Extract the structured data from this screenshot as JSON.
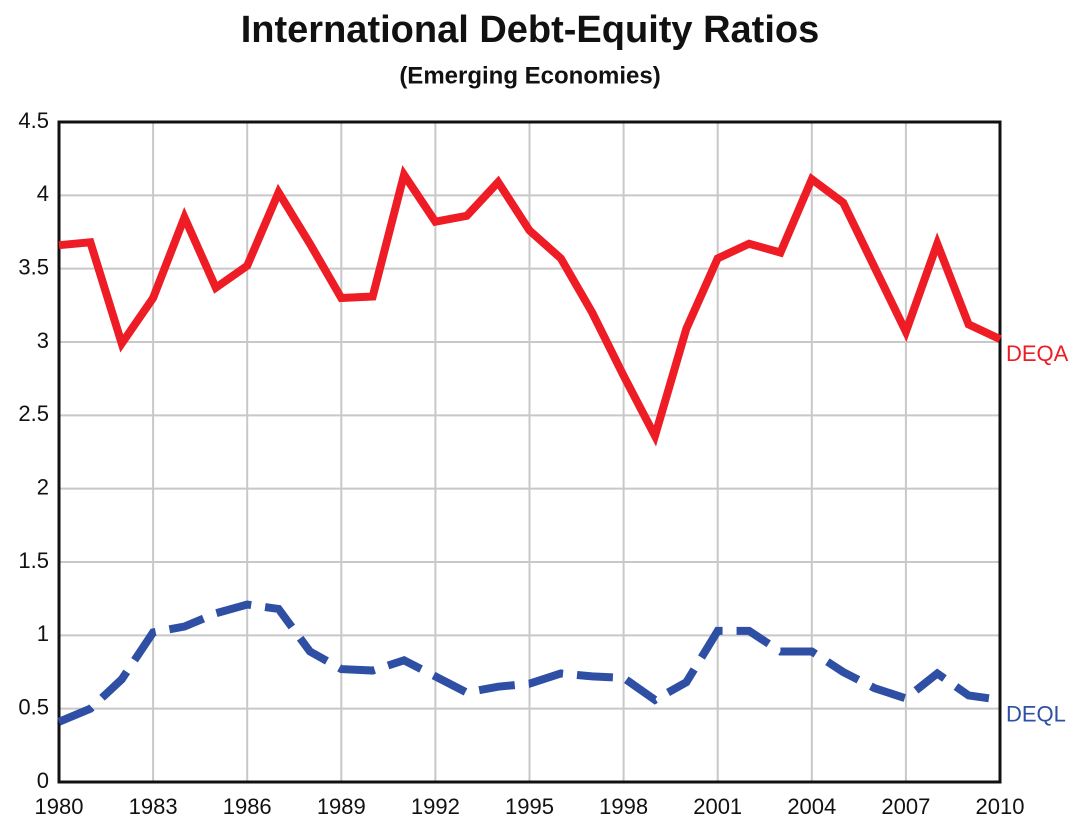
{
  "chart_data": {
    "type": "line",
    "title": "International Debt-Equity Ratios",
    "subtitle": "(Emerging Economies)",
    "x": [
      1980,
      1981,
      1982,
      1983,
      1984,
      1985,
      1986,
      1987,
      1988,
      1989,
      1990,
      1991,
      1992,
      1993,
      1994,
      1995,
      1996,
      1997,
      1998,
      1999,
      2000,
      2001,
      2002,
      2003,
      2004,
      2005,
      2006,
      2007,
      2008,
      2009,
      2010
    ],
    "series": [
      {
        "name": "DEQA",
        "color": "#ee1c25",
        "dash": false,
        "values": [
          3.66,
          3.68,
          2.99,
          3.3,
          3.85,
          3.37,
          3.52,
          4.02,
          3.67,
          3.3,
          3.31,
          4.14,
          3.82,
          3.86,
          4.09,
          3.76,
          3.57,
          3.2,
          2.77,
          2.36,
          3.09,
          3.57,
          3.67,
          3.61,
          4.11,
          3.95,
          3.51,
          3.07,
          3.67,
          3.12,
          3.02
        ]
      },
      {
        "name": "DEQL",
        "color": "#2e4fa3",
        "dash": true,
        "values": [
          0.41,
          0.5,
          0.7,
          1.02,
          1.06,
          1.15,
          1.21,
          1.18,
          0.89,
          0.77,
          0.76,
          0.83,
          0.72,
          0.61,
          0.65,
          0.67,
          0.74,
          0.72,
          0.71,
          0.56,
          0.68,
          1.03,
          1.03,
          0.89,
          0.89,
          0.75,
          0.64,
          0.57,
          0.74,
          0.59,
          0.56
        ]
      }
    ],
    "xlim": [
      1980,
      2010
    ],
    "xticks": [
      1980,
      1983,
      1986,
      1989,
      1992,
      1995,
      1998,
      2001,
      2004,
      2007,
      2010
    ],
    "ylim": [
      0,
      4.5
    ],
    "yticks": [
      0,
      0.5,
      1,
      1.5,
      2,
      2.5,
      3,
      3.5,
      4,
      4.5
    ],
    "grid": true
  }
}
